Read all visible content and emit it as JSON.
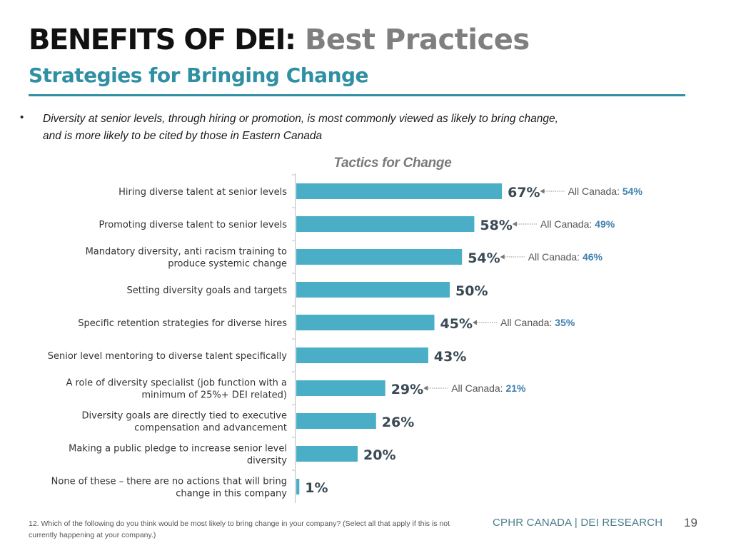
{
  "header": {
    "title_main": "BENEFITS OF DEI:",
    "title_sub": "Best Practices",
    "subtitle": "Strategies for Bringing Change"
  },
  "bullet": {
    "marker": "•",
    "line1": "Diversity at senior levels, through hiring or promotion, is most commonly viewed as likely to bring change,",
    "line2": "and is more likely to be cited by those in Eastern Canada"
  },
  "colors": {
    "bar": "#4aaec6",
    "subtitle": "#2f8fa3",
    "value_label": "#3a4a55",
    "comparison_value": "#3e7fae",
    "comparison_label": "#555555",
    "axis": "#bdbdbd"
  },
  "chart_data": {
    "type": "bar",
    "orientation": "horizontal",
    "title": "Tactics for Change",
    "xlim": [
      0,
      100
    ],
    "categories": [
      [
        "Hiring diverse talent at senior levels"
      ],
      [
        "Promoting diverse talent to senior levels"
      ],
      [
        "Mandatory diversity, anti racism training to",
        "produce systemic change"
      ],
      [
        "Setting diversity goals and targets"
      ],
      [
        "Specific retention strategies for diverse hires"
      ],
      [
        "Senior level mentoring to diverse talent specifically"
      ],
      [
        "A role of diversity specialist (job function with a",
        "minimum of 25%+ DEI related)"
      ],
      [
        "Diversity goals are directly tied to executive",
        "compensation and advancement"
      ],
      [
        "Making a public pledge to increase senior level",
        "diversity"
      ],
      [
        "None of these – there are no actions that will bring",
        "change in this company"
      ]
    ],
    "values": [
      67,
      58,
      54,
      50,
      45,
      43,
      29,
      26,
      20,
      1
    ],
    "value_labels": [
      "67%",
      "58%",
      "54%",
      "50%",
      "45%",
      "43%",
      "29%",
      "26%",
      "20%",
      "1%"
    ],
    "comparison_label": "All Canada:",
    "comparisons": [
      "54%",
      "49%",
      "46%",
      null,
      "35%",
      null,
      "21%",
      null,
      null,
      null
    ]
  },
  "footer": {
    "note": "12. Which of the following do you think would be most likely to bring change in your company? (Select all that apply if this is not currently happening at your company.)",
    "brand": "CPHR CANADA | DEI RESEARCH",
    "page_number": "19"
  }
}
